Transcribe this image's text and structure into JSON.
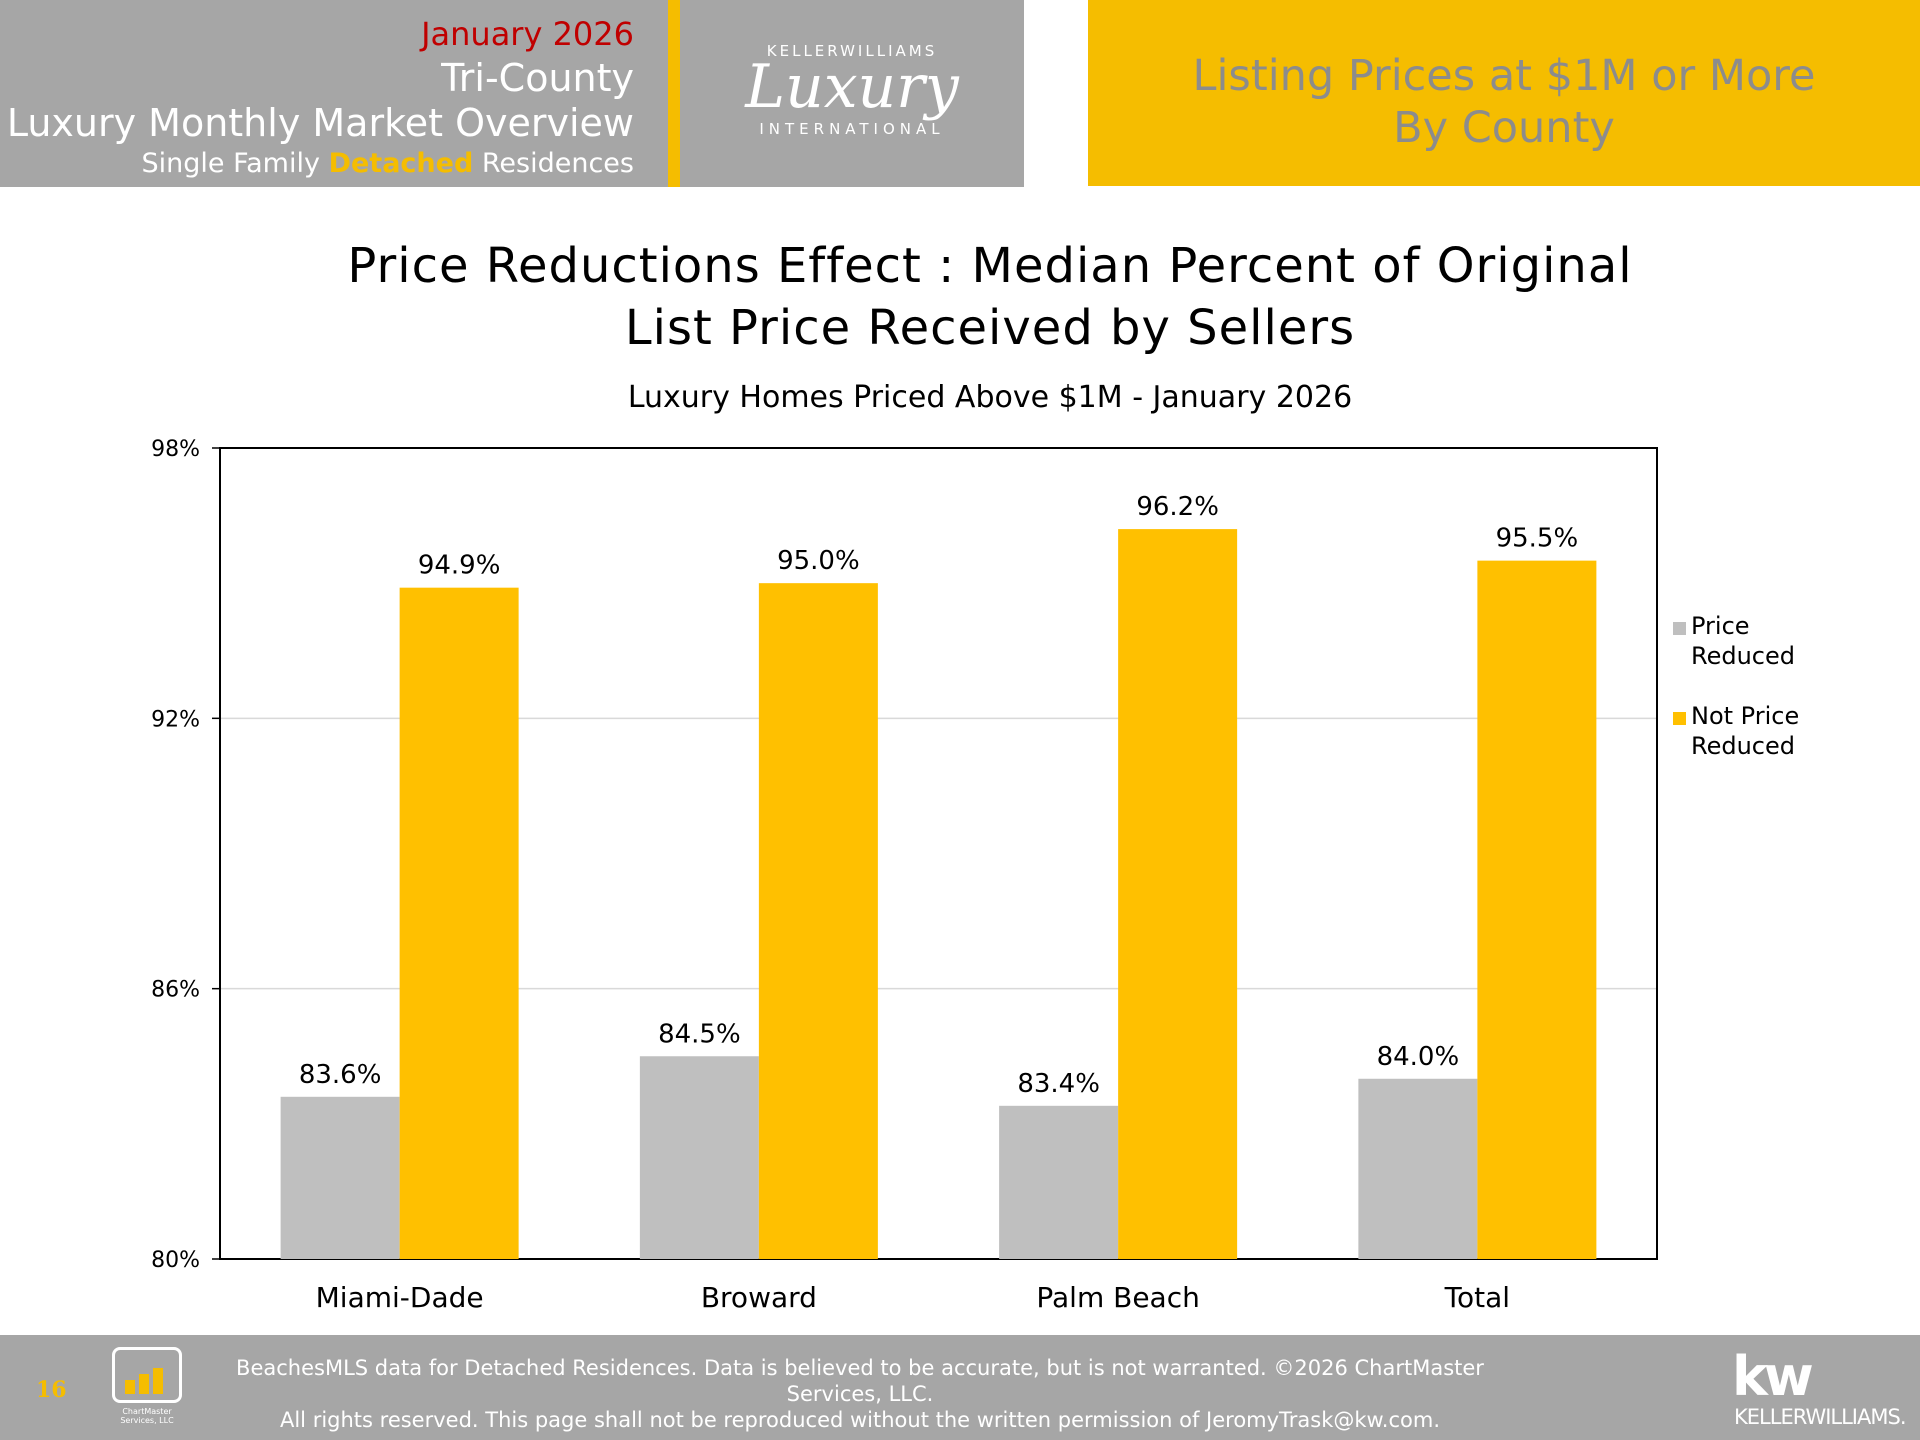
{
  "header": {
    "date": "January 2026",
    "region": "Tri-County",
    "report_title": "Luxury Monthly Market Overview",
    "subtitle_pre": "Single Family",
    "subtitle_highlight": "Detached",
    "subtitle_post": "Residences",
    "logo_top": "KELLERWILLIAMS",
    "logo_script": "Luxury",
    "logo_bottom": "INTERNATIONAL",
    "section_title_1": "Listing Prices at $1M or More",
    "section_title_2": "By County"
  },
  "chart_data": {
    "type": "bar",
    "title_line1": "Price Reductions Effect : Median Percent of Original",
    "title_line2": "List Price Received by Sellers",
    "subtitle": "Luxury Homes Priced Above $1M - January 2026",
    "categories": [
      "Miami-Dade",
      "Broward",
      "Palm Beach",
      "Total"
    ],
    "series": [
      {
        "name": "Price Reduced",
        "color": "#bfbfbf",
        "values": [
          83.6,
          84.5,
          83.4,
          84.0
        ],
        "labels": [
          "83.6%",
          "84.5%",
          "83.4%",
          "84.0%"
        ]
      },
      {
        "name": "Not Price Reduced",
        "color": "#ffc000",
        "values": [
          94.9,
          95.0,
          96.2,
          95.5
        ],
        "labels": [
          "94.9%",
          "95.0%",
          "96.2%",
          "95.5%"
        ]
      }
    ],
    "legend_labels": [
      [
        "Price",
        "Reduced"
      ],
      [
        "Not Price",
        "Reduced"
      ]
    ],
    "ylim": [
      80,
      98
    ],
    "yticks": [
      80,
      86,
      92,
      98
    ],
    "ytick_labels": [
      "80%",
      "86%",
      "92%",
      "98%"
    ],
    "grid": true,
    "legend_position": "right"
  },
  "footer": {
    "page_number": "16",
    "logo_line1": "ChartMaster",
    "logo_line2": "Services, LLC",
    "line1": "BeachesMLS data for Detached Residences.  Data is believed to be accurate, but is not warranted.   ©2026  ChartMaster Services, LLC.",
    "line2": "All rights reserved. This page shall not be reproduced without the written permission of JeromyTrask@kw.com.",
    "kw_mark": "kw",
    "kw_name": "KELLERWILLIAMS."
  }
}
